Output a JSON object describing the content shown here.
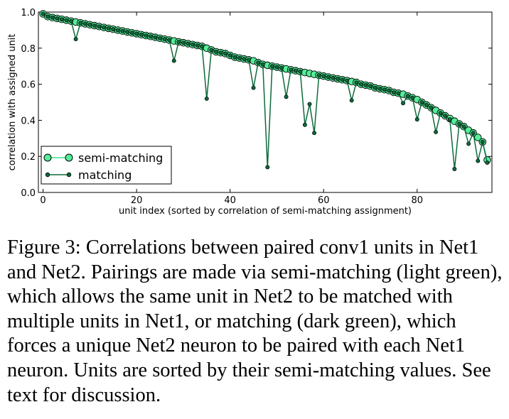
{
  "caption": "Figure 3: Correlations between paired conv1 units in Net1 and Net2. Pairings are made via semi-matching (light green), which allows the same unit in Net2 to be matched with multiple units in Net1, or matching (dark green), which forces a unique Net2 neuron to be paired with each Net1 neuron. Units are sorted by their semi-matching values. See text for discussion.",
  "chart_data": {
    "type": "line",
    "title": "",
    "xlabel": "unit index (sorted by correlation of semi-matching assignment)",
    "ylabel": "correlation with assigned unit",
    "xlim": [
      -1,
      96
    ],
    "ylim": [
      0.0,
      1.0
    ],
    "xticks": [
      0,
      20,
      40,
      60,
      80
    ],
    "xtick_labels": [
      "0",
      "20",
      "40",
      "60",
      "80"
    ],
    "yticks": [
      0.0,
      0.2,
      0.4,
      0.6,
      0.8,
      1.0
    ],
    "ytick_labels": [
      "0.0",
      "0.2",
      "0.4",
      "0.6",
      "0.8",
      "1.0"
    ],
    "grid": false,
    "legend_position": "lower-left",
    "colors": {
      "semi_matching_line": "#38e08c",
      "semi_matching_marker": "#55ee99",
      "matching_line": "#0e6a3c",
      "matching_marker": "#0e6a3c"
    },
    "series": [
      {
        "name": "semi-matching",
        "values": [
          0.99,
          0.975,
          0.97,
          0.965,
          0.96,
          0.955,
          0.95,
          0.945,
          0.94,
          0.935,
          0.93,
          0.925,
          0.92,
          0.915,
          0.91,
          0.905,
          0.9,
          0.895,
          0.89,
          0.885,
          0.88,
          0.875,
          0.87,
          0.865,
          0.86,
          0.855,
          0.85,
          0.845,
          0.84,
          0.835,
          0.83,
          0.825,
          0.82,
          0.815,
          0.81,
          0.8,
          0.79,
          0.78,
          0.775,
          0.77,
          0.76,
          0.75,
          0.745,
          0.74,
          0.735,
          0.73,
          0.72,
          0.71,
          0.705,
          0.7,
          0.695,
          0.69,
          0.685,
          0.68,
          0.675,
          0.67,
          0.665,
          0.66,
          0.655,
          0.65,
          0.645,
          0.64,
          0.635,
          0.63,
          0.625,
          0.62,
          0.615,
          0.61,
          0.6,
          0.595,
          0.59,
          0.58,
          0.575,
          0.57,
          0.565,
          0.555,
          0.55,
          0.545,
          0.535,
          0.525,
          0.515,
          0.5,
          0.485,
          0.47,
          0.455,
          0.44,
          0.425,
          0.41,
          0.395,
          0.38,
          0.365,
          0.345,
          0.33,
          0.305,
          0.28,
          0.18
        ]
      },
      {
        "name": "matching",
        "values": [
          0.99,
          0.975,
          0.97,
          0.965,
          0.96,
          0.955,
          0.95,
          0.85,
          0.94,
          0.935,
          0.93,
          0.925,
          0.92,
          0.915,
          0.91,
          0.905,
          0.9,
          0.895,
          0.89,
          0.885,
          0.88,
          0.875,
          0.87,
          0.865,
          0.86,
          0.855,
          0.85,
          0.845,
          0.73,
          0.835,
          0.83,
          0.825,
          0.82,
          0.815,
          0.81,
          0.52,
          0.79,
          0.78,
          0.775,
          0.77,
          0.76,
          0.75,
          0.745,
          0.74,
          0.735,
          0.58,
          0.72,
          0.71,
          0.14,
          0.7,
          0.695,
          0.69,
          0.53,
          0.68,
          0.675,
          0.67,
          0.375,
          0.49,
          0.33,
          0.65,
          0.645,
          0.64,
          0.635,
          0.63,
          0.625,
          0.62,
          0.51,
          0.61,
          0.6,
          0.595,
          0.59,
          0.58,
          0.575,
          0.57,
          0.565,
          0.555,
          0.55,
          0.495,
          0.535,
          0.525,
          0.405,
          0.5,
          0.485,
          0.47,
          0.335,
          0.44,
          0.425,
          0.405,
          0.13,
          0.38,
          0.365,
          0.27,
          0.33,
          0.175,
          0.28,
          0.165
        ]
      }
    ]
  }
}
